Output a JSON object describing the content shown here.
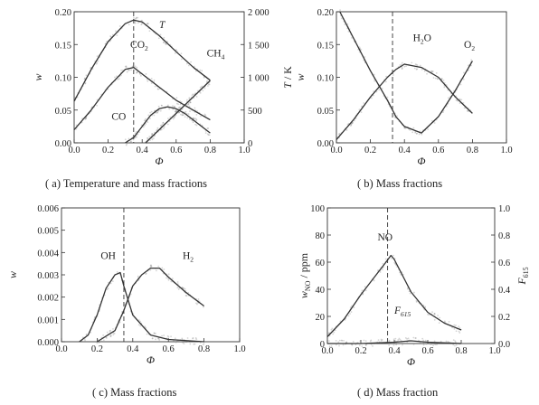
{
  "chart_data": [
    {
      "id": "a",
      "type": "line",
      "caption": "( a)  Temperature and mass fractions",
      "xlabel": "Φ",
      "ylabel": "w",
      "y2label": "T / K",
      "xlim": [
        0.0,
        1.0
      ],
      "ylim": [
        0.0,
        0.2
      ],
      "y2lim": [
        0,
        2200
      ],
      "xticks": [
        "0.0",
        "0.2",
        "0.4",
        "0.6",
        "0.8",
        "1.0"
      ],
      "yticks": [
        "0.00",
        "0.05",
        "0.10",
        "0.15",
        "0.20"
      ],
      "y2ticks": [
        "0",
        "500",
        "1 000",
        "1 500",
        "2 000"
      ],
      "vline": 0.35,
      "series": [
        {
          "name": "T",
          "axis": "right",
          "x": [
            0.0,
            0.1,
            0.2,
            0.3,
            0.35,
            0.4,
            0.5,
            0.6,
            0.7,
            0.8
          ],
          "values": [
            700,
            1230,
            1700,
            2000,
            2060,
            2030,
            1800,
            1530,
            1270,
            1050
          ]
        },
        {
          "name": "CO2",
          "axis": "left",
          "x": [
            0.0,
            0.1,
            0.2,
            0.3,
            0.35,
            0.4,
            0.5,
            0.6,
            0.7,
            0.8
          ],
          "values": [
            0.02,
            0.05,
            0.085,
            0.112,
            0.115,
            0.105,
            0.085,
            0.065,
            0.05,
            0.035
          ]
        },
        {
          "name": "CO",
          "axis": "left",
          "x": [
            0.3,
            0.35,
            0.4,
            0.45,
            0.5,
            0.55,
            0.6,
            0.65,
            0.7,
            0.8
          ],
          "values": [
            0.0,
            0.008,
            0.025,
            0.042,
            0.052,
            0.055,
            0.052,
            0.045,
            0.035,
            0.015
          ]
        },
        {
          "name": "CH4",
          "axis": "left",
          "x": [
            0.42,
            0.5,
            0.6,
            0.7,
            0.8
          ],
          "values": [
            0.0,
            0.02,
            0.045,
            0.07,
            0.095
          ]
        }
      ],
      "annotations": [
        {
          "text": "T",
          "x": 0.5,
          "y": 0.175
        },
        {
          "text": "CO",
          "sub": "2",
          "x": 0.33,
          "y": 0.145
        },
        {
          "text": "CH",
          "sub": "4",
          "x": 0.78,
          "y": 0.132
        },
        {
          "text": "CO",
          "x": 0.22,
          "y": 0.035
        }
      ]
    },
    {
      "id": "b",
      "type": "line",
      "caption": "( b)  Mass fractions",
      "xlabel": "Φ",
      "ylabel": "w",
      "xlim": [
        0.0,
        1.0
      ],
      "ylim": [
        0.0,
        0.2
      ],
      "xticks": [
        "0.0",
        "0.2",
        "0.4",
        "0.6",
        "0.8",
        "1.0"
      ],
      "yticks": [
        "0.00",
        "0.05",
        "0.10",
        "0.15",
        "0.20"
      ],
      "vline": 0.33,
      "series": [
        {
          "name": "H2O",
          "x": [
            0.0,
            0.1,
            0.2,
            0.3,
            0.35,
            0.4,
            0.5,
            0.6,
            0.7,
            0.8
          ],
          "values": [
            0.005,
            0.035,
            0.07,
            0.1,
            0.112,
            0.12,
            0.115,
            0.1,
            0.07,
            0.045
          ]
        },
        {
          "name": "O2",
          "x": [
            0.02,
            0.1,
            0.2,
            0.3,
            0.35,
            0.4,
            0.5,
            0.6,
            0.65,
            0.7,
            0.8
          ],
          "values": [
            0.2,
            0.16,
            0.11,
            0.065,
            0.04,
            0.025,
            0.015,
            0.04,
            0.06,
            0.08,
            0.125
          ]
        }
      ],
      "annotations": [
        {
          "text": "H",
          "sub": "2",
          "post": "O",
          "x": 0.45,
          "y": 0.155
        },
        {
          "text": "O",
          "sub": "2",
          "x": 0.75,
          "y": 0.145
        }
      ]
    },
    {
      "id": "c",
      "type": "line",
      "caption": "( c)  Mass fractions",
      "xlabel": "Φ",
      "ylabel": "w",
      "xlim": [
        0.0,
        1.0
      ],
      "ylim": [
        0.0,
        0.006
      ],
      "xticks": [
        "0.0",
        "0.2",
        "0.4",
        "0.6",
        "0.8",
        "1.0"
      ],
      "yticks": [
        "0.000",
        "0.001",
        "0.002",
        "0.003",
        "0.004",
        "0.005",
        "0.006"
      ],
      "vline": 0.35,
      "series": [
        {
          "name": "OH",
          "x": [
            0.1,
            0.15,
            0.2,
            0.25,
            0.3,
            0.33,
            0.35,
            0.4,
            0.5,
            0.6,
            0.8
          ],
          "values": [
            0.0,
            0.0003,
            0.0012,
            0.0024,
            0.003,
            0.0031,
            0.0025,
            0.0012,
            0.0003,
            0.0001,
            0.0
          ]
        },
        {
          "name": "H2",
          "x": [
            0.2,
            0.3,
            0.35,
            0.4,
            0.45,
            0.5,
            0.55,
            0.6,
            0.7,
            0.8
          ],
          "values": [
            0.0,
            0.0005,
            0.0014,
            0.0025,
            0.003,
            0.0033,
            0.0033,
            0.0029,
            0.0022,
            0.0016
          ]
        }
      ],
      "annotations": [
        {
          "text": "OH",
          "x": 0.22,
          "y": 0.0037
        },
        {
          "text": "H",
          "sub": "2",
          "x": 0.68,
          "y": 0.0037
        }
      ]
    },
    {
      "id": "d",
      "type": "line",
      "caption": "( d)  Mass fraction",
      "xlabel": "Φ",
      "ylabel": "w_NO / ppm",
      "y2label": "F_615",
      "xlim": [
        0.0,
        1.0
      ],
      "ylim": [
        0,
        100
      ],
      "y2lim": [
        0.0,
        1.0
      ],
      "xticks": [
        "0.0",
        "0.2",
        "0.4",
        "0.6",
        "0.8",
        "1.0"
      ],
      "yticks": [
        "0",
        "20",
        "40",
        "60",
        "80",
        "100"
      ],
      "y2ticks": [
        "0.0",
        "0.2",
        "0.4",
        "0.6",
        "0.8",
        "1.0"
      ],
      "vline": 0.36,
      "series": [
        {
          "name": "NO",
          "axis": "left",
          "x": [
            0.0,
            0.1,
            0.2,
            0.3,
            0.35,
            0.38,
            0.4,
            0.5,
            0.6,
            0.7,
            0.8
          ],
          "values": [
            5,
            18,
            36,
            52,
            60,
            65,
            62,
            38,
            23,
            15,
            10
          ]
        },
        {
          "name": "F615",
          "axis": "right",
          "x": [
            0.0,
            0.2,
            0.4,
            0.5,
            0.6,
            0.8
          ],
          "values": [
            0.0,
            0.0,
            0.01,
            0.02,
            0.01,
            0.0
          ]
        }
      ],
      "annotations": [
        {
          "text": "NO",
          "x": 0.3,
          "y": 76
        },
        {
          "text": "F",
          "sub": "615",
          "x": 0.4,
          "y": 22,
          "italic": true
        }
      ]
    }
  ]
}
